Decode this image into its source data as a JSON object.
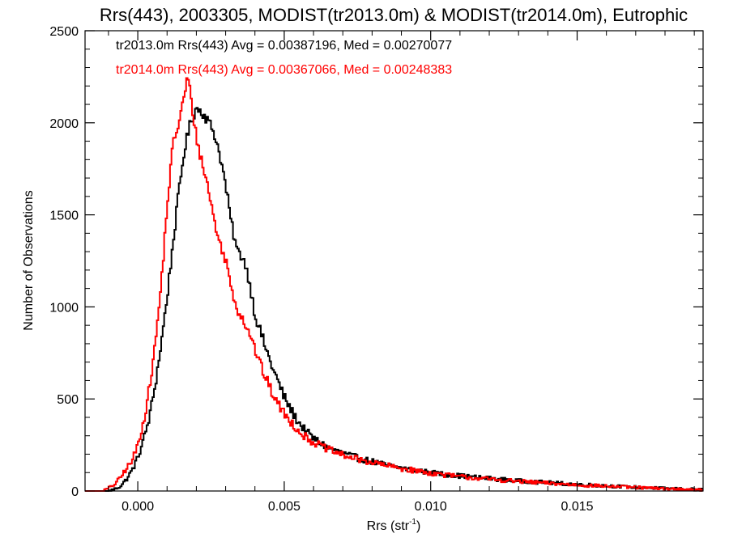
{
  "chart_data": {
    "type": "histogram",
    "title": "Rrs(443), 2003305, MODIST(tr2013.0m) & MODIST(tr2014.0m), Eutrophic",
    "xlabel_main": "Rrs (str",
    "xlabel_sup": "-1",
    "xlabel_end": ")",
    "ylabel": "Number of Observations",
    "xlim": [
      -0.0018,
      0.0193
    ],
    "ylim": [
      0,
      2500
    ],
    "x_ticks": [
      {
        "value": 0.0,
        "label": "0.000"
      },
      {
        "value": 0.005,
        "label": "0.005"
      },
      {
        "value": 0.01,
        "label": "0.010"
      },
      {
        "value": 0.015,
        "label": "0.015"
      }
    ],
    "y_ticks": [
      {
        "value": 0,
        "label": "0"
      },
      {
        "value": 500,
        "label": "500"
      },
      {
        "value": 1000,
        "label": "1000"
      },
      {
        "value": 1500,
        "label": "1500"
      },
      {
        "value": 2000,
        "label": "2000"
      },
      {
        "value": 2500,
        "label": "2500"
      }
    ],
    "series": [
      {
        "name": "tr2013.0m",
        "color": "#000000",
        "stats_text": "tr2013.0m Rrs(443) Avg = 0.00387196, Med = 0.00270077",
        "points": [
          [
            -0.0018,
            0
          ],
          [
            -0.001,
            0
          ],
          [
            -0.0008,
            10
          ],
          [
            -0.0006,
            25
          ],
          [
            -0.0004,
            60
          ],
          [
            -0.0002,
            110
          ],
          [
            0.0,
            180
          ],
          [
            0.0002,
            280
          ],
          [
            0.0004,
            400
          ],
          [
            0.0006,
            580
          ],
          [
            0.0008,
            800
          ],
          [
            0.001,
            1050
          ],
          [
            0.0012,
            1340
          ],
          [
            0.0014,
            1620
          ],
          [
            0.0016,
            1860
          ],
          [
            0.0018,
            2000
          ],
          [
            0.002,
            2080
          ],
          [
            0.0022,
            2060
          ],
          [
            0.0024,
            2010
          ],
          [
            0.0026,
            1950
          ],
          [
            0.0028,
            1830
          ],
          [
            0.003,
            1660
          ],
          [
            0.0032,
            1450
          ],
          [
            0.0034,
            1300
          ],
          [
            0.0036,
            1270
          ],
          [
            0.0038,
            1150
          ],
          [
            0.004,
            960
          ],
          [
            0.0042,
            860
          ],
          [
            0.0044,
            760
          ],
          [
            0.0046,
            670
          ],
          [
            0.0048,
            590
          ],
          [
            0.005,
            510
          ],
          [
            0.0052,
            450
          ],
          [
            0.0054,
            395
          ],
          [
            0.0056,
            350
          ],
          [
            0.0058,
            315
          ],
          [
            0.006,
            285
          ],
          [
            0.0065,
            235
          ],
          [
            0.007,
            205
          ],
          [
            0.0075,
            180
          ],
          [
            0.008,
            160
          ],
          [
            0.0085,
            140
          ],
          [
            0.009,
            125
          ],
          [
            0.0095,
            112
          ],
          [
            0.01,
            100
          ],
          [
            0.011,
            82
          ],
          [
            0.012,
            68
          ],
          [
            0.013,
            55
          ],
          [
            0.014,
            45
          ],
          [
            0.015,
            36
          ],
          [
            0.016,
            28
          ],
          [
            0.017,
            20
          ],
          [
            0.018,
            14
          ],
          [
            0.0193,
            8
          ]
        ]
      },
      {
        "name": "tr2014.0m",
        "color": "#ff0000",
        "stats_text": "tr2014.0m Rrs(443) Avg = 0.00367066, Med = 0.00248383",
        "points": [
          [
            -0.0018,
            0
          ],
          [
            -0.0012,
            0
          ],
          [
            -0.001,
            15
          ],
          [
            -0.0008,
            35
          ],
          [
            -0.0006,
            70
          ],
          [
            -0.0004,
            120
          ],
          [
            -0.0002,
            160
          ],
          [
            0.0,
            250
          ],
          [
            0.0002,
            380
          ],
          [
            0.0004,
            560
          ],
          [
            0.0006,
            800
          ],
          [
            0.0008,
            1120
          ],
          [
            0.001,
            1540
          ],
          [
            0.0012,
            1880
          ],
          [
            0.0014,
            2000
          ],
          [
            0.0016,
            2150
          ],
          [
            0.0017,
            2260
          ],
          [
            0.0018,
            2150
          ],
          [
            0.002,
            1920
          ],
          [
            0.0022,
            1780
          ],
          [
            0.0024,
            1650
          ],
          [
            0.0026,
            1480
          ],
          [
            0.0028,
            1340
          ],
          [
            0.003,
            1260
          ],
          [
            0.0032,
            1100
          ],
          [
            0.0034,
            990
          ],
          [
            0.0036,
            930
          ],
          [
            0.0038,
            870
          ],
          [
            0.004,
            770
          ],
          [
            0.0042,
            680
          ],
          [
            0.0044,
            600
          ],
          [
            0.0046,
            530
          ],
          [
            0.0048,
            470
          ],
          [
            0.005,
            420
          ],
          [
            0.0052,
            380
          ],
          [
            0.0054,
            345
          ],
          [
            0.0056,
            310
          ],
          [
            0.0058,
            285
          ],
          [
            0.006,
            265
          ],
          [
            0.0065,
            225
          ],
          [
            0.007,
            195
          ],
          [
            0.0075,
            172
          ],
          [
            0.008,
            155
          ],
          [
            0.0085,
            138
          ],
          [
            0.009,
            122
          ],
          [
            0.0095,
            110
          ],
          [
            0.01,
            97
          ],
          [
            0.011,
            78
          ],
          [
            0.012,
            64
          ],
          [
            0.013,
            52
          ],
          [
            0.014,
            42
          ],
          [
            0.015,
            33
          ],
          [
            0.016,
            26
          ],
          [
            0.017,
            19
          ],
          [
            0.018,
            12
          ],
          [
            0.0193,
            6
          ]
        ]
      }
    ],
    "grid": false,
    "legend_placement": "top-left"
  }
}
